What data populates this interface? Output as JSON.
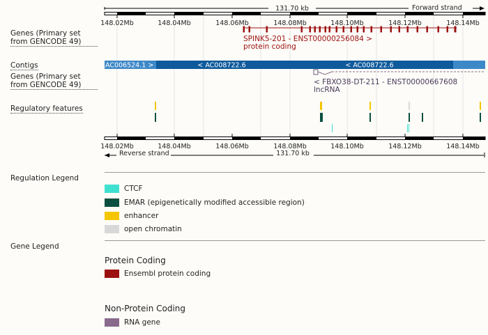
{
  "colors": {
    "protein_coding": "#9b1010",
    "rna_gene": "#8a6a8c",
    "contig_dark": "#0e5a9c",
    "contig_light": "#3d88c8",
    "ctcf": "#40e0d0",
    "emar": "#0a4f3f",
    "enhancer": "#f5c500",
    "open_chromatin": "#d8d8d8"
  },
  "ruler": {
    "span_label": "131.70 kb",
    "forward_label": "Forward strand",
    "reverse_label": "Reverse strand",
    "ticks": [
      "148.02Mb",
      "148.04Mb",
      "148.06Mb",
      "148.08Mb",
      "148.10Mb",
      "148.12Mb",
      "148.14Mb"
    ]
  },
  "tracks": {
    "genes_forward_label": "Genes (Primary set from GENCODE 49)",
    "contigs_label": "Contigs",
    "genes_reverse_label": "Genes (Primary set from GENCODE 49)",
    "regulatory_label": "Regulatory features"
  },
  "genes": {
    "forward": {
      "name": "SPINK5-201 - ENST00000256084 >",
      "biotype": "protein coding"
    },
    "reverse": {
      "name": "< FBXO38-DT-211 - ENST00000667608",
      "biotype": "lncRNA"
    }
  },
  "contigs": [
    {
      "label": "AC006524.1 >"
    },
    {
      "label": "< AC008722.6"
    },
    {
      "label": "< AC008722.6"
    }
  ],
  "regulation_legend": {
    "title": "Regulation Legend",
    "items": [
      {
        "label": "CTCF",
        "color": "#40e0d0"
      },
      {
        "label": "EMAR (epigenetically modified accessible region)",
        "color": "#0a4f3f"
      },
      {
        "label": "enhancer",
        "color": "#f5c500"
      },
      {
        "label": "open chromatin",
        "color": "#d8d8d8"
      }
    ]
  },
  "gene_legend": {
    "title": "Gene Legend",
    "protein_coding_heading": "Protein Coding",
    "protein_coding_item": "Ensembl protein coding",
    "non_coding_heading": "Non-Protein Coding",
    "non_coding_item": "RNA gene"
  }
}
